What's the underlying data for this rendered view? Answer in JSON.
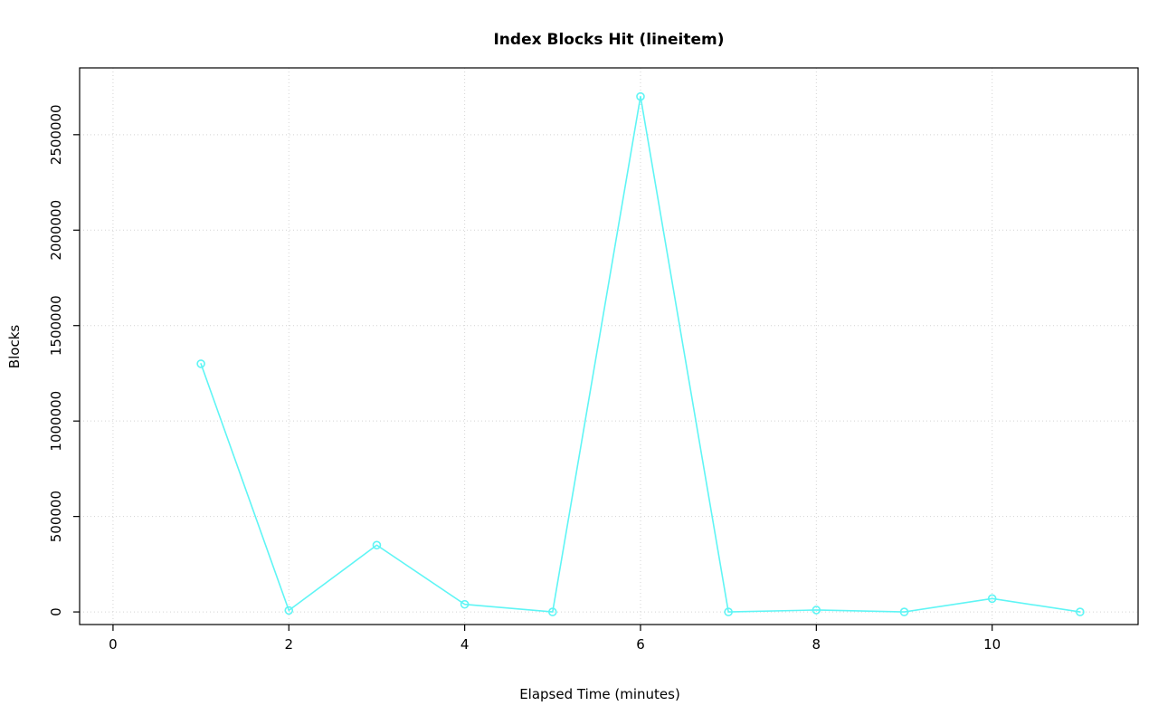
{
  "chart_data": {
    "type": "line",
    "title": "Index Blocks Hit (lineitem)",
    "xlabel": "Elapsed Time (minutes)",
    "ylabel": "Blocks",
    "x": [
      1,
      2,
      3,
      4,
      5,
      6,
      7,
      8,
      9,
      10,
      11
    ],
    "values": [
      1300000,
      8000,
      350000,
      40000,
      0,
      2700000,
      0,
      10000,
      0,
      70000,
      0
    ],
    "x_ticks": [
      0,
      2,
      4,
      6,
      8,
      10
    ],
    "y_ticks": [
      0,
      500000,
      1000000,
      1500000,
      2000000,
      2500000
    ],
    "xlim": [
      -0.38,
      11.66
    ],
    "ylim": [
      -66000,
      2850000
    ],
    "grid": true,
    "legend": "none",
    "line_color": "#5ff5f5",
    "marker": "circle-open",
    "marker_radius": 4,
    "grid_color": "#d4d4d4",
    "axis_color": "#000000",
    "background_color": "#ffffff"
  }
}
